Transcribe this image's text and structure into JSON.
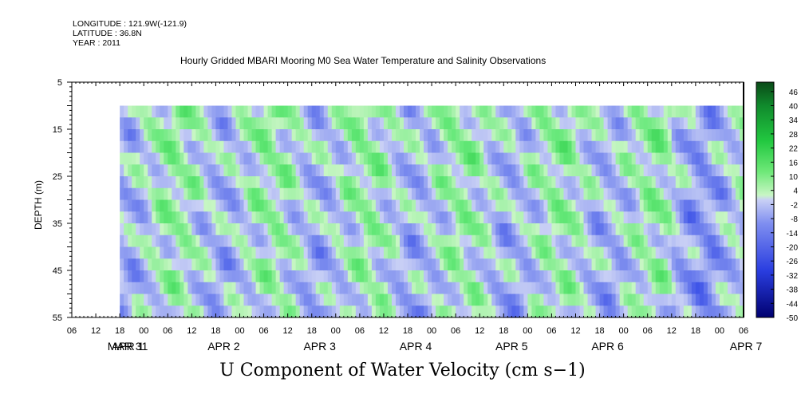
{
  "header": {
    "longitude": "LONGITUDE : 121.9W(-121.9)",
    "latitude": "LATITUDE : 36.8N",
    "year": "YEAR : 2011",
    "plot_title": "Hourly Gridded MBARI Mooring M0 Sea Water Temperature and Salinity Observations"
  },
  "main_title": "U Component of Water Velocity (cm s−1)",
  "chart_data": {
    "type": "heatmap",
    "title": "U Component of Water Velocity (cm s−1)",
    "ylabel": "DEPTH (m)",
    "xlabel": "",
    "y_ticks": [
      "5",
      "15",
      "25",
      "35",
      "45",
      "55"
    ],
    "y_range": [
      5,
      55
    ],
    "y_inverted": true,
    "x_hour_ticks": [
      "06",
      "12",
      "18",
      "00",
      "06",
      "12",
      "18",
      "00",
      "06",
      "12",
      "18",
      "00",
      "06",
      "12",
      "18",
      "00",
      "06",
      "12",
      "18",
      "00",
      "06",
      "12",
      "18",
      "00",
      "06",
      "12",
      "18",
      "00",
      "06",
      "12",
      "18",
      "00"
    ],
    "x_day_labels": [
      "MAR 31",
      "APR  1",
      "APR  2",
      "APR  3",
      "APR  4",
      "APR  5",
      "APR  6",
      "APR  7"
    ],
    "data_x_start": "MAR 31 12:00",
    "data_x_end": "APR 7 00:00",
    "data_depth_range": [
      10,
      55
    ],
    "colorbar": {
      "labels": [
        "46",
        "40",
        "34",
        "28",
        "22",
        "16",
        "10",
        "4",
        "-2",
        "-8",
        "-14",
        "-20",
        "-26",
        "-32",
        "-38",
        "-44",
        "-50"
      ],
      "min": -50,
      "max": 50
    },
    "colors": {
      "strong_positive": "#0a5a1e",
      "positive": "#22dd3c",
      "weak_positive": "#9ff09a",
      "weak_negative": "#aab4f0",
      "negative": "#7f8ef0",
      "strong_negative": "#000070"
    }
  }
}
